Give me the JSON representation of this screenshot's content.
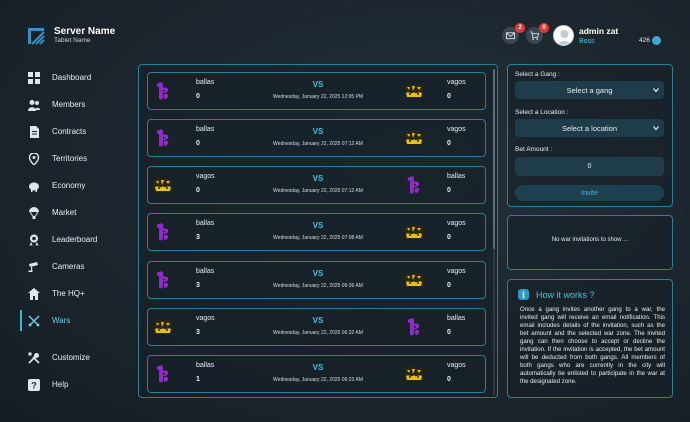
{
  "brand": {
    "name": "Server Name",
    "subtitle": "Tablet Name"
  },
  "nav": [
    {
      "label": "Dashboard",
      "icon": "dashboard-icon"
    },
    {
      "label": "Members",
      "icon": "members-icon"
    },
    {
      "label": "Contracts",
      "icon": "contracts-icon"
    },
    {
      "label": "Territories",
      "icon": "territories-icon"
    },
    {
      "label": "Economy",
      "icon": "economy-icon"
    },
    {
      "label": "Market",
      "icon": "market-icon"
    },
    {
      "label": "Leaderboard",
      "icon": "leaderboard-icon"
    },
    {
      "label": "Cameras",
      "icon": "cameras-icon"
    },
    {
      "label": "The HQ+",
      "icon": "hq-icon"
    },
    {
      "label": "Wars",
      "icon": "wars-icon",
      "active": true
    },
    {
      "label": "Customize",
      "icon": "customize-icon"
    },
    {
      "label": "Help",
      "icon": "help-icon"
    }
  ],
  "header": {
    "mail_badge": "2",
    "cart_badge": "0",
    "user_name": "admin zat",
    "user_role": "Boss",
    "money": "426"
  },
  "wars": [
    {
      "left_gang": "ballas",
      "left_score": "0",
      "right_gang": "vagos",
      "right_score": "0",
      "vs": "VS",
      "date": "Wednesday, January 22, 2025 12:05 PM"
    },
    {
      "left_gang": "ballas",
      "left_score": "0",
      "right_gang": "vagos",
      "right_score": "0",
      "vs": "VS",
      "date": "Wednesday, January 22, 2025 07:12 AM"
    },
    {
      "left_gang": "vagos",
      "left_score": "0",
      "right_gang": "ballas",
      "right_score": "0",
      "vs": "VS",
      "date": "Wednesday, January 22, 2025 07:12 AM"
    },
    {
      "left_gang": "ballas",
      "left_score": "3",
      "right_gang": "vagos",
      "right_score": "0",
      "vs": "VS",
      "date": "Wednesday, January 22, 2025 07:08 AM"
    },
    {
      "left_gang": "ballas",
      "left_score": "3",
      "right_gang": "vagos",
      "right_score": "0",
      "vs": "VS",
      "date": "Wednesday, January 22, 2025 06:36 AM"
    },
    {
      "left_gang": "vagos",
      "left_score": "3",
      "right_gang": "ballas",
      "right_score": "0",
      "vs": "VS",
      "date": "Wednesday, January 22, 2025 06:32 AM"
    },
    {
      "left_gang": "ballas",
      "left_score": "1",
      "right_gang": "vagos",
      "right_score": "0",
      "vs": "VS",
      "date": "Wednesday, January 22, 2025 06:23 AM"
    }
  ],
  "form": {
    "gang_label": "Select a Gang :",
    "gang_value": "Select a gang",
    "location_label": "Select a Location :",
    "location_value": "Select a location",
    "bet_label": "Bet Amount :",
    "bet_value": "0",
    "invite_label": "Invite"
  },
  "invitations": {
    "empty_text": "No war invitations to show ..."
  },
  "how": {
    "icon_glyph": "i",
    "title": "How it works ?",
    "body": "Once a gang invites another gang to a war, the invited gang will receive an email notification. This email includes details of the invitation, such as the bet amount and the selected war zone. The invited gang can then choose to accept or decline the invitation. If the invitation is accepted, the bet amount will be deducted from both gangs. All members of both gangs who are currently in the city will automatically be enlisted to participate in the war at the designated zone."
  },
  "colors": {
    "accent": "#46c0d8",
    "panel_border": "#2a7f99",
    "ballas": "#8e2bc9",
    "vagos": "#e3c21a",
    "badge": "#e23a3a"
  }
}
